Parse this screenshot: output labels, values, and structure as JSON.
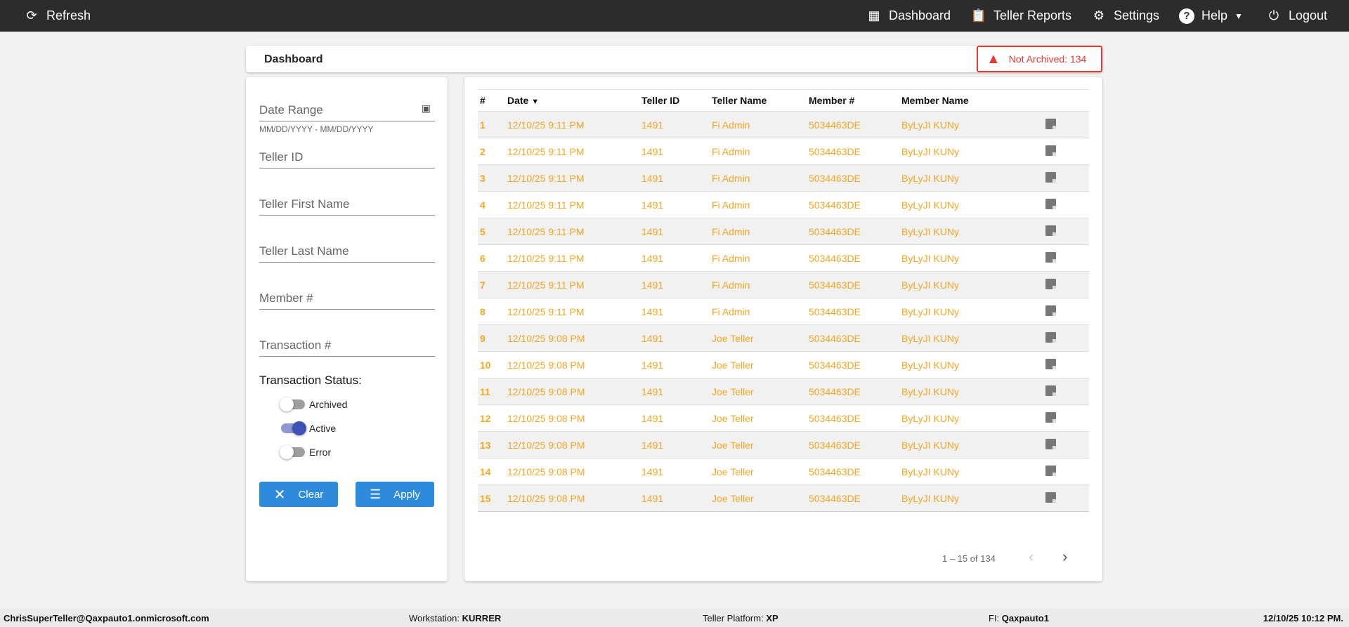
{
  "nav": {
    "refresh": "Refresh",
    "dashboard": "Dashboard",
    "teller_reports": "Teller Reports",
    "settings": "Settings",
    "help": "Help",
    "logout": "Logout"
  },
  "header": {
    "title": "Dashboard",
    "badge": "Not Archived: 134",
    "badge_color": "#e53935"
  },
  "filters": {
    "date_range": "Date Range",
    "date_hint": "MM/DD/YYYY - MM/DD/YYYY",
    "teller_id": "Teller ID",
    "teller_first": "Teller First Name",
    "teller_last": "Teller Last Name",
    "member": "Member #",
    "transaction": "Transaction #",
    "status_label": "Transaction Status:",
    "statuses": [
      {
        "label": "Archived",
        "on": false
      },
      {
        "label": "Active",
        "on": true
      },
      {
        "label": "Error",
        "on": false
      }
    ],
    "clear": "Clear",
    "apply": "Apply"
  },
  "table": {
    "columns": [
      "#",
      "Date",
      "Teller ID",
      "Teller Name",
      "Member #",
      "Member Name"
    ],
    "rows": [
      [
        "1",
        "12/10/25 9:11 PM",
        "1491",
        "Fi Admin",
        "5034463DE",
        "ByLyJI KUNy"
      ],
      [
        "2",
        "12/10/25 9:11 PM",
        "1491",
        "Fi Admin",
        "5034463DE",
        "ByLyJI KUNy"
      ],
      [
        "3",
        "12/10/25 9:11 PM",
        "1491",
        "Fi Admin",
        "5034463DE",
        "ByLyJI KUNy"
      ],
      [
        "4",
        "12/10/25 9:11 PM",
        "1491",
        "Fi Admin",
        "5034463DE",
        "ByLyJI KUNy"
      ],
      [
        "5",
        "12/10/25 9:11 PM",
        "1491",
        "Fi Admin",
        "5034463DE",
        "ByLyJI KUNy"
      ],
      [
        "6",
        "12/10/25 9:11 PM",
        "1491",
        "Fi Admin",
        "5034463DE",
        "ByLyJI KUNy"
      ],
      [
        "7",
        "12/10/25 9:11 PM",
        "1491",
        "Fi Admin",
        "5034463DE",
        "ByLyJI KUNy"
      ],
      [
        "8",
        "12/10/25 9:11 PM",
        "1491",
        "Fi Admin",
        "5034463DE",
        "ByLyJI KUNy"
      ],
      [
        "9",
        "12/10/25 9:08 PM",
        "1491",
        "Joe Teller",
        "5034463DE",
        "ByLyJI KUNy"
      ],
      [
        "10",
        "12/10/25 9:08 PM",
        "1491",
        "Joe Teller",
        "5034463DE",
        "ByLyJI KUNy"
      ],
      [
        "11",
        "12/10/25 9:08 PM",
        "1491",
        "Joe Teller",
        "5034463DE",
        "ByLyJI KUNy"
      ],
      [
        "12",
        "12/10/25 9:08 PM",
        "1491",
        "Joe Teller",
        "5034463DE",
        "ByLyJI KUNy"
      ],
      [
        "13",
        "12/10/25 9:08 PM",
        "1491",
        "Joe Teller",
        "5034463DE",
        "ByLyJI KUNy"
      ],
      [
        "14",
        "12/10/25 9:08 PM",
        "1491",
        "Joe Teller",
        "5034463DE",
        "ByLyJI KUNy"
      ],
      [
        "15",
        "12/10/25 9:08 PM",
        "1491",
        "Joe Teller",
        "5034463DE",
        "ByLyJI KUNy"
      ]
    ],
    "row_color": "#f5a623",
    "pagination": "1 – 15 of 134"
  },
  "footer": {
    "user": "ChrisSuperTeller@Qaxpauto1.onmicrosoft.com",
    "workstation_label": "Workstation:",
    "workstation": "KURRER",
    "platform_label": "Teller Platform:",
    "platform": "XP",
    "fi_label": "FI:",
    "fi": "Qaxpauto1",
    "datetime": "12/10/25 10:12 PM."
  }
}
